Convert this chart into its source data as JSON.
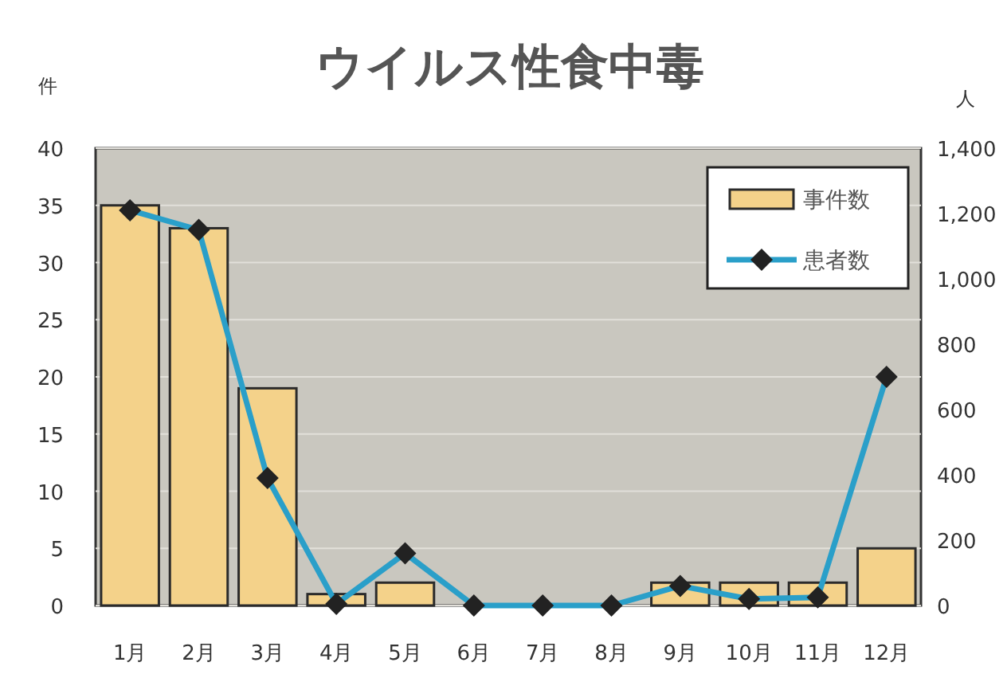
{
  "chart_data": {
    "type": "bar",
    "title": "ウイルス性食中毒",
    "ylabel": "件",
    "y2label": "人",
    "categories": [
      "1月",
      "2月",
      "3月",
      "4月",
      "5月",
      "6月",
      "7月",
      "8月",
      "9月",
      "10月",
      "11月",
      "12月"
    ],
    "series": [
      {
        "name": "事件数",
        "color": "#f4d28a",
        "values": [
          35,
          33,
          19,
          1,
          2,
          0,
          0,
          0,
          2,
          2,
          2,
          5
        ]
      },
      {
        "name": "患者数",
        "type": "line",
        "axis": "y2",
        "color": "#2a9fc9",
        "marker": "diamond",
        "values": [
          1210,
          1150,
          390,
          5,
          160,
          0,
          0,
          0,
          60,
          20,
          25,
          700
        ]
      }
    ],
    "ylim": [
      0,
      40
    ],
    "yticks": [
      0,
      5,
      10,
      15,
      20,
      25,
      30,
      35,
      40
    ],
    "y2lim": [
      0,
      1400
    ],
    "y2ticks": [
      0,
      200,
      400,
      600,
      800,
      {
        "value": 1000,
        "label": "1,000"
      },
      {
        "value": 1200,
        "label": "1,200"
      },
      {
        "value": 1400,
        "label": "1,400"
      }
    ],
    "grid": "y",
    "legend": "top right"
  }
}
